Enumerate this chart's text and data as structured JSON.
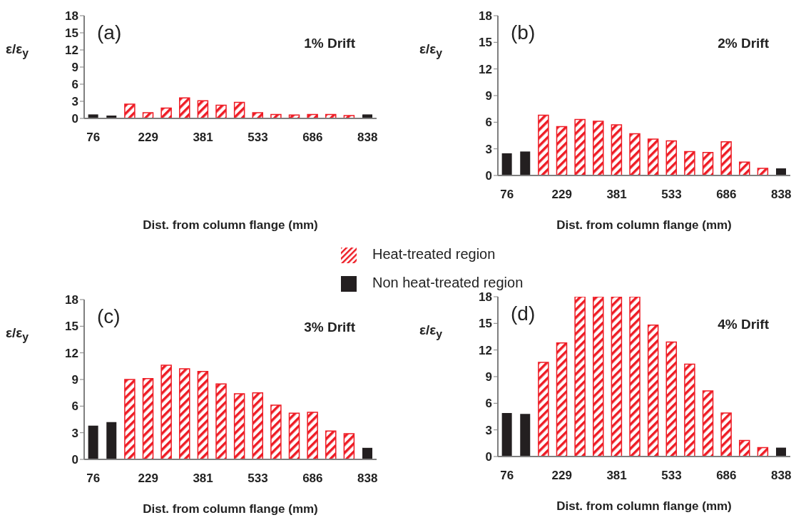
{
  "chart_data": [
    {
      "type": "bar",
      "categories": [
        "76",
        null,
        null,
        "229",
        null,
        null,
        "381",
        null,
        null,
        "533",
        null,
        null,
        "686",
        null,
        null,
        "838"
      ],
      "ylabel": "ε/ε$_{y}$",
      "xlabel": "Dist. from column flange (mm)",
      "ylim": [
        0,
        18
      ],
      "yticks": [
        0,
        3,
        6,
        9,
        12,
        15,
        18
      ],
      "annotations": [
        "(a)",
        "1% Drift"
      ],
      "legend": "bottom",
      "series": [
        {
          "name": "Heat-treated region",
          "color": "#ee1c25",
          "values": [
            null,
            null,
            2.5,
            1.0,
            1.8,
            3.6,
            3.1,
            2.3,
            2.8,
            1.0,
            0.7,
            0.6,
            0.7,
            0.7,
            0.5,
            null
          ]
        },
        {
          "name": "Non heat-treated region",
          "color": "#231f20",
          "values": [
            0.7,
            0.5,
            null,
            null,
            null,
            null,
            null,
            null,
            null,
            null,
            null,
            null,
            null,
            null,
            null,
            0.7
          ]
        }
      ]
    },
    {
      "type": "bar",
      "categories": [
        "76",
        null,
        null,
        "229",
        null,
        null,
        "381",
        null,
        null,
        "533",
        null,
        null,
        "686",
        null,
        null,
        "838"
      ],
      "ylabel": "ε/ε$_{y}$",
      "xlabel": "Dist. from column flange (mm)",
      "ylim": [
        0,
        18
      ],
      "yticks": [
        0,
        3,
        6,
        9,
        12,
        15,
        18
      ],
      "annotations": [
        "(b)",
        "2% Drift"
      ],
      "series": [
        {
          "color": "#ee1c25",
          "values": [
            null,
            null,
            6.8,
            5.5,
            6.3,
            6.1,
            5.7,
            4.7,
            4.1,
            3.9,
            2.7,
            2.6,
            3.8,
            1.5,
            0.8,
            null
          ]
        },
        {
          "color": "#231f20",
          "values": [
            2.5,
            2.7,
            null,
            null,
            null,
            null,
            null,
            null,
            null,
            null,
            null,
            null,
            null,
            null,
            null,
            0.8
          ]
        }
      ]
    },
    {
      "type": "bar",
      "categories": [
        "76",
        null,
        null,
        "229",
        null,
        null,
        "381",
        null,
        null,
        "533",
        null,
        null,
        "686",
        null,
        null,
        "838"
      ],
      "ylabel": "ε/ε$_{y}$",
      "xlabel": "Dist. from column flange (mm)",
      "ylim": [
        0,
        18
      ],
      "yticks": [
        0,
        3,
        6,
        9,
        12,
        15,
        18
      ],
      "annotations": [
        "(c)",
        "3% Drift"
      ],
      "series": [
        {
          "color": "#ee1c25",
          "values": [
            null,
            null,
            9.0,
            9.1,
            10.6,
            10.2,
            9.9,
            8.5,
            7.4,
            7.5,
            6.1,
            5.2,
            5.3,
            3.2,
            2.9,
            null
          ]
        },
        {
          "color": "#231f20",
          "values": [
            3.8,
            4.2,
            null,
            null,
            null,
            null,
            null,
            null,
            null,
            null,
            null,
            null,
            null,
            null,
            null,
            1.3
          ]
        }
      ]
    },
    {
      "type": "bar",
      "categories": [
        "76",
        null,
        null,
        "229",
        null,
        null,
        "381",
        null,
        null,
        "533",
        null,
        null,
        "686",
        null,
        null,
        "838"
      ],
      "ylabel": "ε/ε$_{y}$",
      "xlabel": "Dist. from column flange (mm)",
      "ylim": [
        0,
        18
      ],
      "yticks": [
        0,
        3,
        6,
        9,
        12,
        15,
        18
      ],
      "annotations": [
        "(d)",
        "4% Drift"
      ],
      "series": [
        {
          "color": "#ee1c25",
          "values": [
            null,
            null,
            10.6,
            12.8,
            18,
            18,
            18,
            18,
            14.8,
            12.9,
            10.4,
            7.4,
            4.9,
            1.8,
            1.0,
            null
          ]
        },
        {
          "color": "#231f20",
          "values": [
            4.9,
            4.8,
            null,
            null,
            null,
            null,
            null,
            null,
            null,
            null,
            null,
            null,
            null,
            null,
            null,
            1.0
          ]
        }
      ]
    }
  ]
}
